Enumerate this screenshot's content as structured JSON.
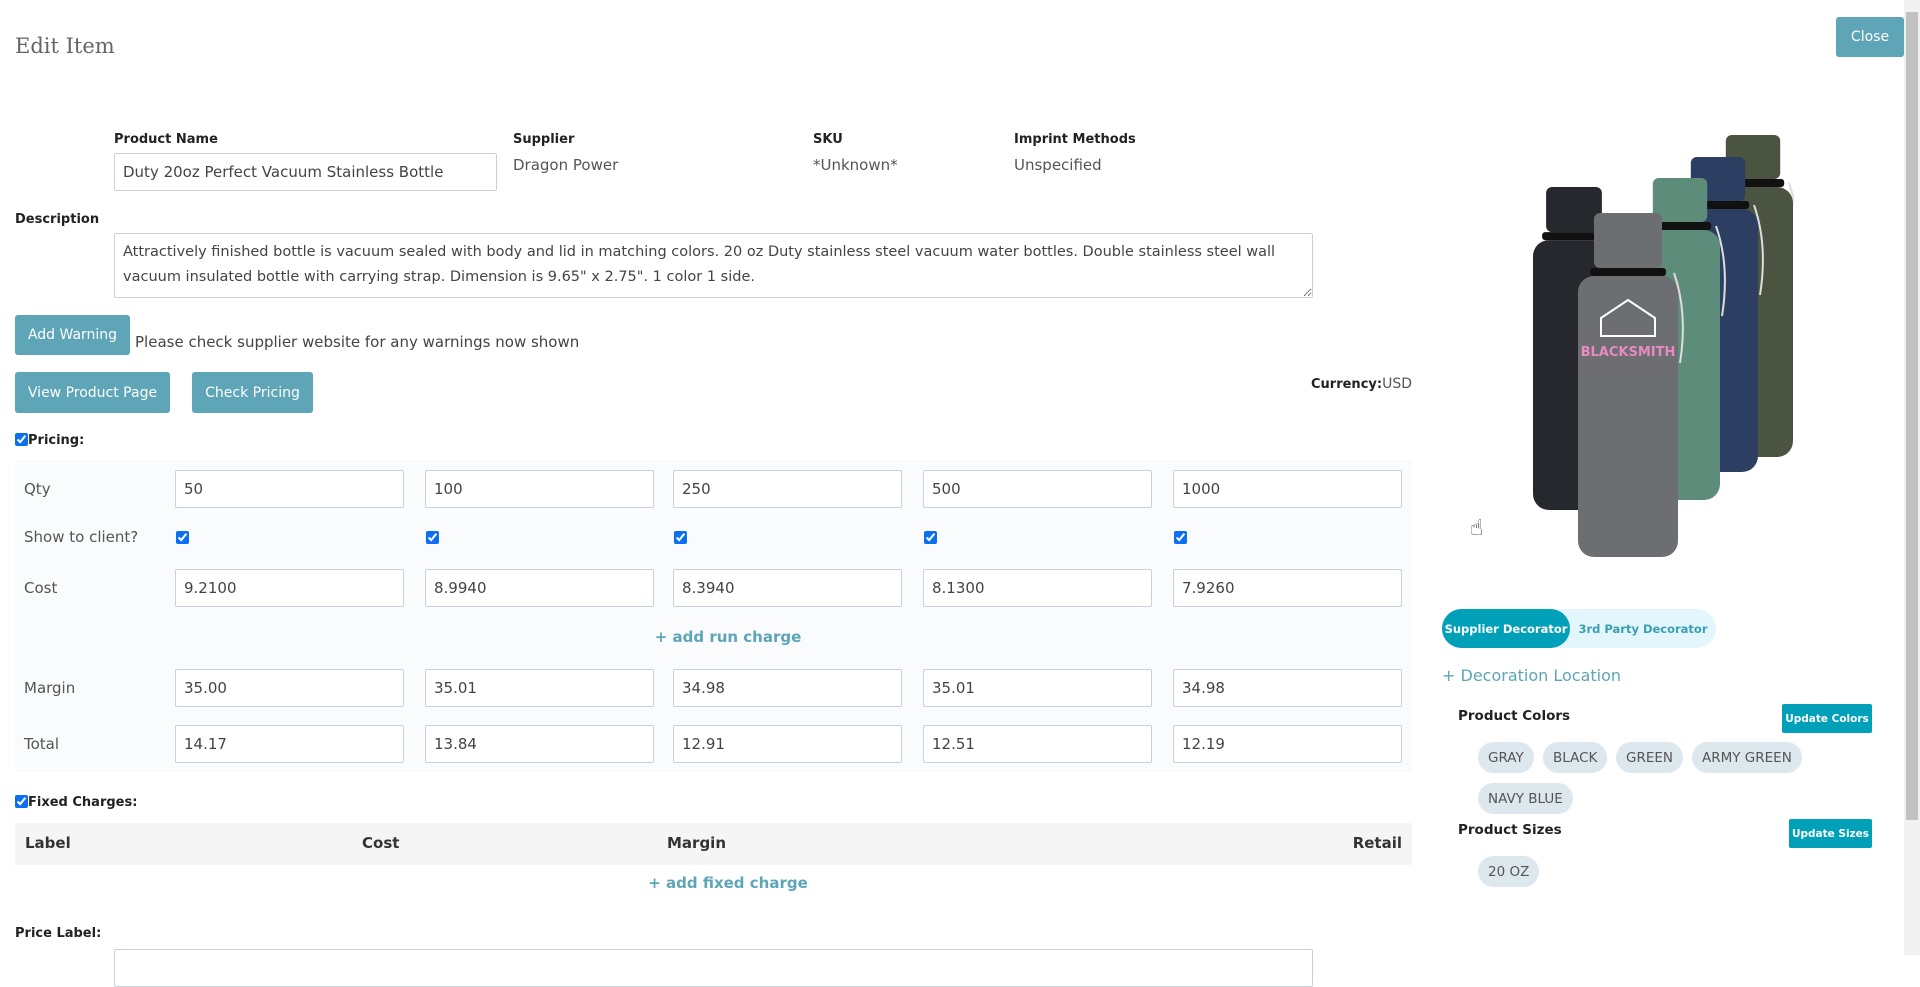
{
  "header": {
    "title": "Edit Item",
    "close_label": "Close"
  },
  "product": {
    "name_label": "Product Name",
    "name_value": "Duty 20oz Perfect Vacuum Stainless Bottle",
    "supplier_label": "Supplier",
    "supplier_value": "Dragon Power",
    "sku_label": "SKU",
    "sku_value": "*Unknown*",
    "imprint_label": "Imprint Methods",
    "imprint_value": "Unspecified",
    "description_label": "Description",
    "description_value": "Attractively finished bottle is vacuum sealed with body and lid in matching colors. 20 oz Duty stainless steel vacuum water bottles. Double stainless steel wall vacuum insulated bottle with carrying strap. Dimension is 9.65\" x 2.75\". 1 color 1 side."
  },
  "warning": {
    "button_label": "Add Warning",
    "note": "Please check supplier website for any warnings now shown"
  },
  "actions": {
    "view_product_label": "View Product Page",
    "check_pricing_label": "Check Pricing"
  },
  "currency": {
    "label": "Currency:",
    "value": "USD"
  },
  "pricing": {
    "label": "Pricing:",
    "checked": true,
    "row_labels": {
      "qty": "Qty",
      "show": "Show to client?",
      "cost": "Cost",
      "margin": "Margin",
      "total": "Total"
    },
    "qty": [
      "50",
      "100",
      "250",
      "500",
      "1000"
    ],
    "show_to_client": [
      true,
      true,
      true,
      true,
      true
    ],
    "cost": [
      "9.2100",
      "8.9940",
      "8.3940",
      "8.1300",
      "7.9260"
    ],
    "margin": [
      "35.00",
      "35.01",
      "34.98",
      "35.01",
      "34.98"
    ],
    "total": [
      "14.17",
      "13.84",
      "12.91",
      "12.51",
      "12.19"
    ],
    "add_run_charge": "+ add run charge"
  },
  "fixed_charges": {
    "label": "Fixed Charges:",
    "checked": true,
    "columns": [
      "Label",
      "Cost",
      "Margin",
      "Retail"
    ],
    "add_label": "+ add fixed charge"
  },
  "price_label": {
    "label": "Price Label:"
  },
  "decorator": {
    "tabs": [
      "Supplier Decorator",
      "3rd Party Decorator"
    ],
    "active": 0,
    "add_location": "+ Decoration Location"
  },
  "colors": {
    "label": "Product Colors",
    "update_label": "Update Colors",
    "items": [
      "GRAY",
      "BLACK",
      "GREEN",
      "ARMY GREEN",
      "NAVY BLUE"
    ]
  },
  "sizes": {
    "label": "Product Sizes",
    "update_label": "Update Sizes",
    "items": [
      "20 OZ"
    ]
  },
  "image": {
    "logo_text": "BLACKSMITH"
  },
  "theme": {
    "button": "#5da5b7",
    "accent": "#00a0b8",
    "chip": "#dde7ee"
  }
}
